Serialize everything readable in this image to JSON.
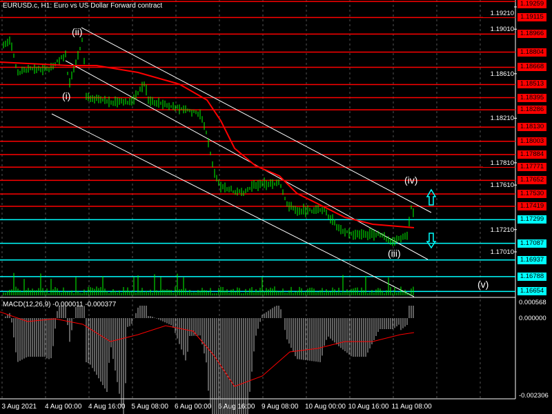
{
  "header": {
    "title": "EURUSD.c, H1:  Euro vs US Dollar Forward contract"
  },
  "macd": {
    "label": "MACD(12,26,9) -0.000011 -0.000377",
    "axis": [
      "0.000568",
      "0.000000",
      "-0.002306"
    ]
  },
  "price_axis": [
    "1.19210",
    "1.19010",
    "1.18610",
    "1.18210",
    "1.17810",
    "1.17610",
    "1.17210",
    "1.17010"
  ],
  "red_levels": [
    "1.19259",
    "1.19115",
    "1.18966",
    "1.18804",
    "1.18668",
    "1.18513",
    "1.18395",
    "1.18286",
    "1.18130",
    "1.18003",
    "1.17884",
    "1.17771",
    "1.17652",
    "1.17530",
    "1.17419"
  ],
  "cyan_levels": [
    "1.17299",
    "1.17087",
    "1.16937",
    "1.16788",
    "1.16654"
  ],
  "time_axis": [
    "3 Aug 2021",
    "4 Aug 00:00",
    "4 Aug 16:00",
    "5 Aug 08:00",
    "6 Aug 00:00",
    "6 Aug 16:00",
    "9 Aug 08:00",
    "10 Aug 00:00",
    "10 Aug 16:00",
    "11 Aug 08:00"
  ],
  "waves": [
    "(ii)",
    "(i)",
    "(iv)",
    "(iii)",
    "(v)"
  ],
  "colors": {
    "red": "#ff0000",
    "cyan": "#00ffff",
    "candle": "#00ff00",
    "bg": "#000000"
  },
  "icons": [
    "arrow-up-icon",
    "arrow-down-icon"
  ]
}
